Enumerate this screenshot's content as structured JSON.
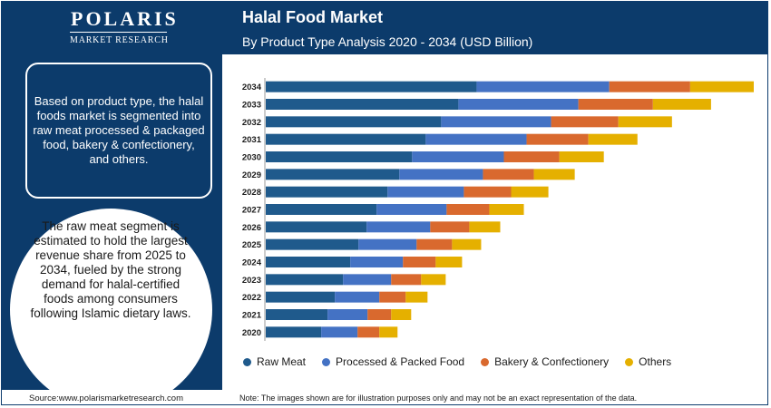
{
  "brand": {
    "name": "POLARIS",
    "tagline": "MARKET RESEARCH"
  },
  "header": {
    "title": "Halal Food Market",
    "subtitle": "By Product Type Analysis 2020 - 2034 (USD Billion)"
  },
  "info": {
    "segment_text": "Based on product type, the halal foods market is segmented into raw meat processed & packaged food, bakery & confectionery, and others.",
    "highlight_text": "The raw meat segment is estimated to hold the largest revenue share from 2025 to 2034, fueled by the strong demand for halal-certified foods among consumers following Islamic dietary laws."
  },
  "footer": {
    "source": "Source:www.polarismarketresearch.com",
    "note": "Note: The images shown are for illustration purposes only and may not be an exact representation of the data."
  },
  "colors": {
    "panel": "#0c3b6b",
    "raw_meat": "#1f5a8c",
    "processed": "#4472c4",
    "bakery": "#d9692e",
    "others": "#e5b000"
  },
  "chart_data": {
    "type": "bar",
    "orientation": "horizontal",
    "stacked": true,
    "grid": false,
    "legend_position": "bottom",
    "categories": [
      "2034",
      "2033",
      "2032",
      "2031",
      "2030",
      "2029",
      "2028",
      "2027",
      "2026",
      "2025",
      "2024",
      "2023",
      "2022",
      "2021",
      "2020"
    ],
    "series": [
      {
        "name": "Raw Meat",
        "color": "#1f5a8c",
        "values": [
          232,
          212,
          193,
          176,
          161,
          147,
          134,
          122,
          111,
          102,
          93,
          85,
          76,
          68,
          61
        ]
      },
      {
        "name": "Processed & Packed Food",
        "color": "#4472c4",
        "values": [
          146,
          132,
          121,
          111,
          101,
          92,
          84,
          77,
          70,
          64,
          58,
          53,
          49,
          44,
          40
        ]
      },
      {
        "name": "Bakery & Confectionery",
        "color": "#d9692e",
        "values": [
          89,
          82,
          74,
          68,
          61,
          56,
          52,
          47,
          43,
          39,
          36,
          33,
          29,
          26,
          24
        ]
      },
      {
        "name": "Others",
        "color": "#e5b000",
        "values": [
          70,
          64,
          59,
          54,
          49,
          45,
          41,
          38,
          34,
          32,
          29,
          27,
          24,
          22,
          20
        ]
      }
    ]
  }
}
